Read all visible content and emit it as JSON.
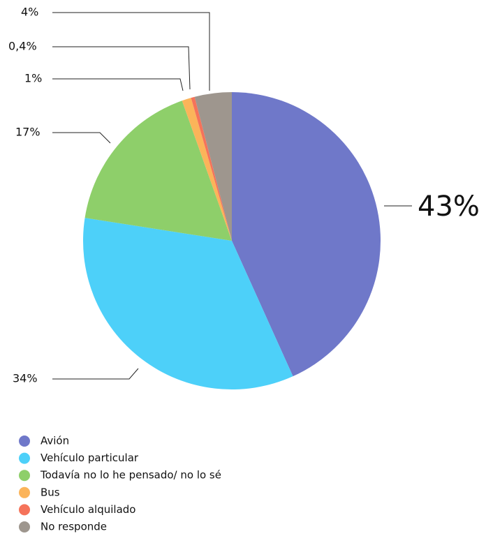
{
  "chart_data": {
    "type": "pie",
    "categories": [
      "Avión",
      "Vehículo particular",
      "Todavía no lo he pensado/ no lo sé",
      "Bus",
      "Vehículo alquilado",
      "No responde"
    ],
    "values": [
      43,
      34,
      17,
      1,
      0.4,
      4
    ],
    "value_labels": [
      "43%",
      "34%",
      "17%",
      "1%",
      "0,4%",
      "4%"
    ],
    "colors": [
      "#6f78c9",
      "#4dd0f9",
      "#8ecf6a",
      "#fbb45a",
      "#f5735a",
      "#9e968e"
    ],
    "legend": "bottom-left"
  }
}
